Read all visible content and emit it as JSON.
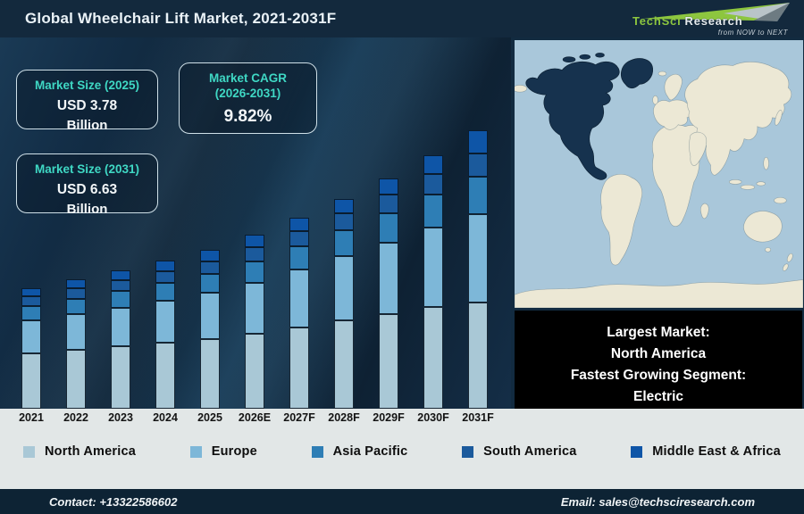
{
  "header": {
    "title": "Global Wheelchair Lift Market, 2021-2031F",
    "logo": {
      "brand_primary": "TechSci",
      "brand_secondary": "Research",
      "tagline": "from NOW to NEXT"
    }
  },
  "stat_boxes": [
    {
      "label": "Market Size (2025)",
      "sublabel": "",
      "value": "USD 3.78",
      "unit": "Billion"
    },
    {
      "label": "Market CAGR",
      "sublabel": "(2026-2031)",
      "value": "9.82%",
      "unit": ""
    },
    {
      "label": "Market Size (2031)",
      "sublabel": "",
      "value": "USD 6.63",
      "unit": "Billion"
    }
  ],
  "chart_data": {
    "type": "bar",
    "stacked": true,
    "title": "Global Wheelchair Lift Market, 2021-2031F",
    "units": "USD Billion",
    "xlabel": "",
    "ylabel": "",
    "ylim": [
      0,
      7
    ],
    "grid": false,
    "legend_position": "bottom",
    "categories": [
      "2021",
      "2022",
      "2023",
      "2024",
      "2025",
      "2026E",
      "2027F",
      "2028F",
      "2029F",
      "2030F",
      "2031F"
    ],
    "series": [
      {
        "name": "North America",
        "color": "#a9c8d6",
        "values": [
          1.32,
          1.4,
          1.49,
          1.57,
          1.66,
          1.78,
          1.94,
          2.1,
          2.26,
          2.42,
          2.54
        ]
      },
      {
        "name": "Europe",
        "color": "#7db7d8",
        "values": [
          0.78,
          0.85,
          0.92,
          1.01,
          1.1,
          1.22,
          1.37,
          1.53,
          1.7,
          1.9,
          2.09
        ]
      },
      {
        "name": "Asia Pacific",
        "color": "#2e7eb5",
        "values": [
          0.35,
          0.37,
          0.4,
          0.42,
          0.45,
          0.52,
          0.57,
          0.63,
          0.71,
          0.79,
          0.9
        ]
      },
      {
        "name": "South America",
        "color": "#1b5a9c",
        "values": [
          0.23,
          0.25,
          0.26,
          0.28,
          0.3,
          0.33,
          0.36,
          0.4,
          0.44,
          0.48,
          0.56
        ]
      },
      {
        "name": "Middle East & Africa",
        "color": "#0e55a7",
        "values": [
          0.2,
          0.21,
          0.23,
          0.25,
          0.27,
          0.3,
          0.32,
          0.35,
          0.39,
          0.45,
          0.54
        ]
      }
    ],
    "totals": [
      2.88,
      3.08,
      3.3,
      3.53,
      3.78,
      4.15,
      4.56,
      5.01,
      5.5,
      6.04,
      6.63
    ],
    "annotations": [
      "Market Size (2025): USD 3.78 Billion",
      "Market CAGR (2026-2031): 9.82%",
      "Market Size (2031): USD 6.63 Billion"
    ]
  },
  "market_note": {
    "lines": [
      "Largest Market:",
      "North America",
      "Fastest Growing Segment:",
      "Electric"
    ]
  },
  "footer": {
    "contact": "Contact: +13322586602",
    "email": "Email: sales@techsciresearch.com"
  },
  "colors": {
    "accent_teal": "#3fd8c4",
    "brand_green": "#8dc63f",
    "header_bg": "#13293d",
    "panel_bg": "#122b40",
    "footer_bg": "#0d2334",
    "band_bg": "#e2e7e7",
    "note_bg": "#000000",
    "map_ocean": "#a9c7da",
    "map_land": "#ece8d5",
    "map_highlight": "#16324e"
  }
}
